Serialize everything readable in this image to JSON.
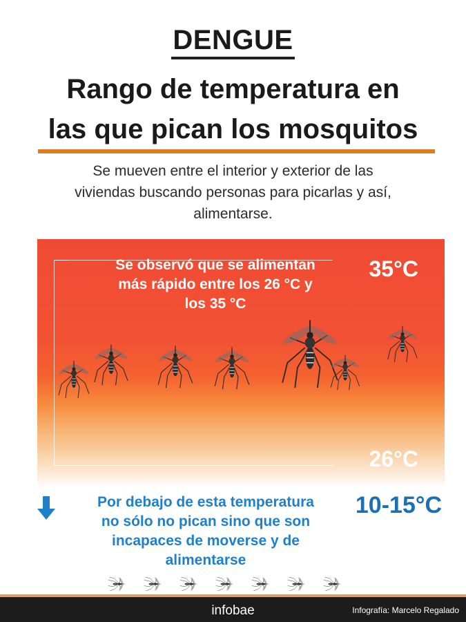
{
  "header": {
    "kicker": "DENGUE",
    "title_line1": "Rango de temperatura en",
    "title_line2": "las que pican los mosquitos"
  },
  "intro": {
    "line1": "Se mueven entre el interior y exterior de las",
    "line2": "viviendas buscando personas para picarlas y así,",
    "line3": "alimentarse."
  },
  "panel": {
    "observed_line1": "Se observó que se alimentan",
    "observed_line2": "más rápido entre los 26 °C y",
    "observed_line3": "los 35 °C",
    "temp_top": "35°C",
    "temp_mid": "26°C"
  },
  "below": {
    "line1": "Por debajo de esta temperatura",
    "line2": "no sólo no pican sino que son",
    "line3": "incapaces de moverse y de",
    "line4": "alimentarse",
    "temp_low": "10-15°C"
  },
  "footer": {
    "brand": "infobae",
    "credit": "Infografía: Marcelo Regalado"
  },
  "colors": {
    "accent_rule": "#e07c1e",
    "panel_top": "#f04a33",
    "cold_blue": "#1f7fc9",
    "footer_bg": "#1c1c1c"
  },
  "icons": {
    "arrow": "arrow-down-icon",
    "mosquito": "mosquito-icon"
  }
}
